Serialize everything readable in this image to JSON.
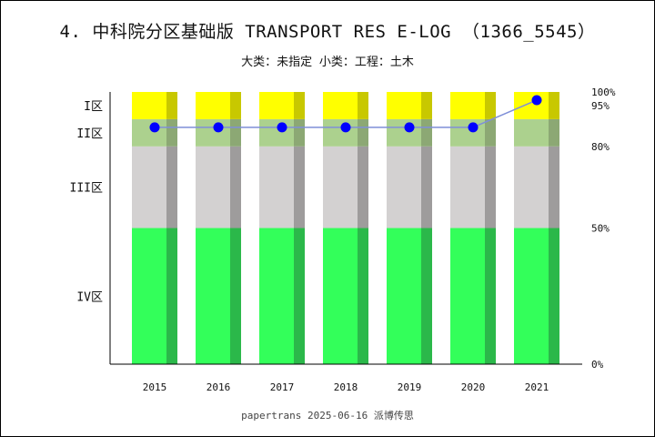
{
  "title": "4. 中科院分区基础版 TRANSPORT RES E-LOG （1366_5545）",
  "subtitle": "大类：未指定 小类：工程：土木",
  "footer": "papertrans 2025-06-16 派博传思",
  "colors": {
    "zone1": "#ffff00",
    "zone1_side": "#c8c800",
    "zone2": "#acd18e",
    "zone2_side": "#8ca874",
    "zone3": "#d3d1d1",
    "zone3_side": "#9e9c9c",
    "zone4": "#33ff5a",
    "zone4_side": "#2bb84a",
    "line": "#7f8fd8",
    "marker": "#0000ff"
  },
  "chart_data": {
    "type": "bar",
    "categories": [
      "2015",
      "2016",
      "2017",
      "2018",
      "2019",
      "2020",
      "2021"
    ],
    "zones": [
      {
        "label": "IV区",
        "from": 0,
        "to": 50
      },
      {
        "label": "III区",
        "from": 50,
        "to": 80
      },
      {
        "label": "II区",
        "from": 80,
        "to": 90
      },
      {
        "label": "I区",
        "from": 90,
        "to": 100
      }
    ],
    "right_ticks": [
      {
        "label": "0%",
        "value": 0
      },
      {
        "label": "50%",
        "value": 50
      },
      {
        "label": "80%",
        "value": 80
      },
      {
        "label": "95%",
        "value": 95
      },
      {
        "label": "100%",
        "value": 100
      }
    ],
    "series": [
      {
        "values": [
          87,
          87,
          87,
          87,
          87,
          87,
          97
        ]
      }
    ],
    "ylim": [
      0,
      100
    ]
  }
}
